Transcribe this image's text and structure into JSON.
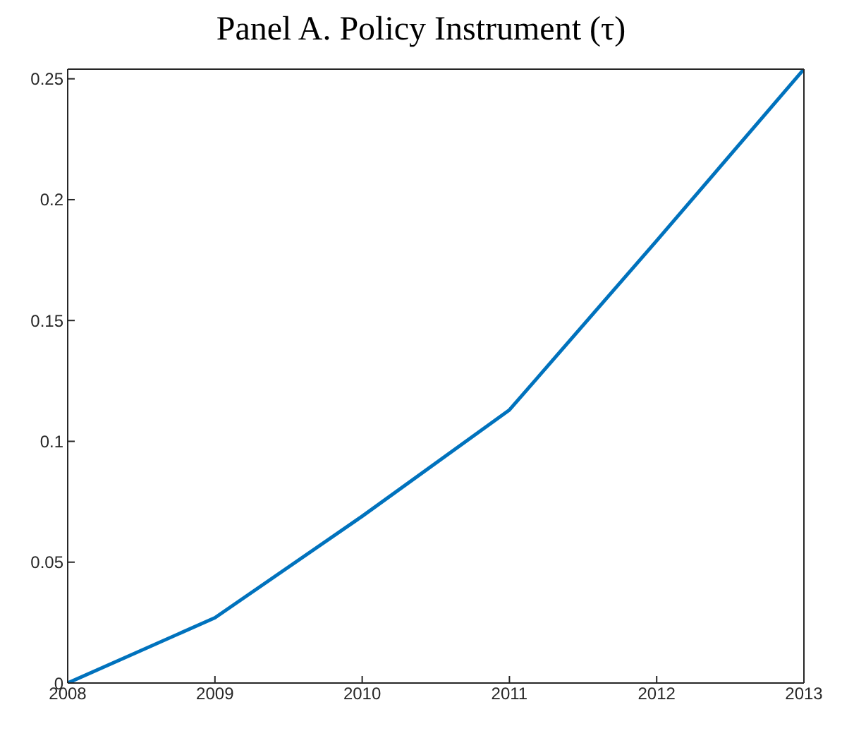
{
  "chart_data": {
    "type": "line",
    "title": "Panel A. Policy Instrument (τ)",
    "x": [
      2008,
      2009,
      2010,
      2011,
      2012,
      2013
    ],
    "series": [
      {
        "color": "#0072bd",
        "values": [
          0,
          0.027,
          0.069,
          0.113,
          0.183,
          0.254
        ]
      }
    ],
    "xlim": [
      2008,
      2013
    ],
    "xticks": [
      2008,
      2009,
      2010,
      2011,
      2012,
      2013
    ],
    "ylim": [
      0,
      0.254
    ],
    "yticks": [
      0,
      0.05,
      0.1,
      0.15,
      0.2,
      0.25
    ],
    "marker": "none",
    "line_style": "solid"
  }
}
